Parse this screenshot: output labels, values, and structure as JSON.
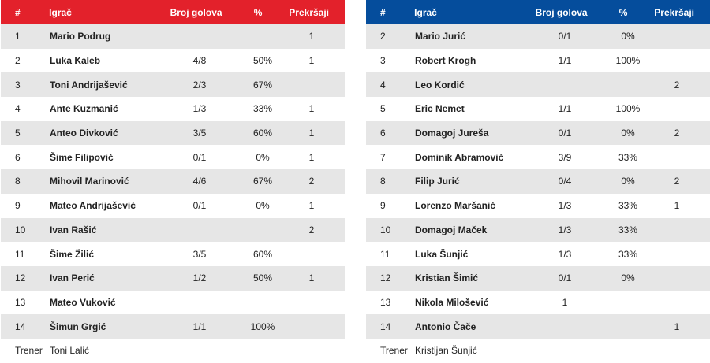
{
  "colors": {
    "home_header": "#e3212b",
    "away_header": "#054d9c",
    "row_shade": "#e6e6e6"
  },
  "headers": {
    "num": "#",
    "player": "Igrač",
    "goals": "Broj golova",
    "pct": "%",
    "fouls": "Prekršaji"
  },
  "home": {
    "players": [
      {
        "num": "1",
        "name": "Mario Podrug",
        "goals": "",
        "pct": "",
        "fouls": "1"
      },
      {
        "num": "2",
        "name": "Luka Kaleb",
        "goals": "4/8",
        "pct": "50%",
        "fouls": "1"
      },
      {
        "num": "3",
        "name": "Toni Andrijašević",
        "goals": "2/3",
        "pct": "67%",
        "fouls": ""
      },
      {
        "num": "4",
        "name": "Ante Kuzmanić",
        "goals": "1/3",
        "pct": "33%",
        "fouls": "1"
      },
      {
        "num": "5",
        "name": "Anteo Divković",
        "goals": "3/5",
        "pct": "60%",
        "fouls": "1"
      },
      {
        "num": "6",
        "name": "Šime Filipović",
        "goals": "0/1",
        "pct": "0%",
        "fouls": "1"
      },
      {
        "num": "8",
        "name": "Mihovil Marinović",
        "goals": "4/6",
        "pct": "67%",
        "fouls": "2"
      },
      {
        "num": "9",
        "name": "Mateo Andrijašević",
        "goals": "0/1",
        "pct": "0%",
        "fouls": "1"
      },
      {
        "num": "10",
        "name": "Ivan Rašić",
        "goals": "",
        "pct": "",
        "fouls": "2"
      },
      {
        "num": "11",
        "name": "Šime Žilić",
        "goals": "3/5",
        "pct": "60%",
        "fouls": ""
      },
      {
        "num": "12",
        "name": "Ivan Perić",
        "goals": "1/2",
        "pct": "50%",
        "fouls": "1"
      },
      {
        "num": "13",
        "name": "Mateo Vuković",
        "goals": "",
        "pct": "",
        "fouls": ""
      },
      {
        "num": "14",
        "name": "Šimun Grgić",
        "goals": "1/1",
        "pct": "100%",
        "fouls": ""
      }
    ],
    "coach_label": "Trener",
    "coach_name": "Toni Lalić"
  },
  "away": {
    "players": [
      {
        "num": "2",
        "name": "Mario Jurić",
        "goals": "0/1",
        "pct": "0%",
        "fouls": ""
      },
      {
        "num": "3",
        "name": "Robert Krogh",
        "goals": "1/1",
        "pct": "100%",
        "fouls": ""
      },
      {
        "num": "4",
        "name": "Leo Kordić",
        "goals": "",
        "pct": "",
        "fouls": "2"
      },
      {
        "num": "5",
        "name": "Eric Nemet",
        "goals": "1/1",
        "pct": "100%",
        "fouls": ""
      },
      {
        "num": "6",
        "name": "Domagoj Jureša",
        "goals": "0/1",
        "pct": "0%",
        "fouls": "2"
      },
      {
        "num": "7",
        "name": "Dominik Abramović",
        "goals": "3/9",
        "pct": "33%",
        "fouls": ""
      },
      {
        "num": "8",
        "name": "Filip Jurić",
        "goals": "0/4",
        "pct": "0%",
        "fouls": "2"
      },
      {
        "num": "9",
        "name": "Lorenzo Maršanić",
        "goals": "1/3",
        "pct": "33%",
        "fouls": "1"
      },
      {
        "num": "10",
        "name": "Domagoj Maček",
        "goals": "1/3",
        "pct": "33%",
        "fouls": ""
      },
      {
        "num": "11",
        "name": "Luka Šunjić",
        "goals": "1/3",
        "pct": "33%",
        "fouls": ""
      },
      {
        "num": "12",
        "name": "Kristian Šimić",
        "goals": "0/1",
        "pct": "0%",
        "fouls": ""
      },
      {
        "num": "13",
        "name": "Nikola Milošević",
        "goals": "1",
        "pct": "",
        "fouls": ""
      },
      {
        "num": "14",
        "name": "Antonio Čače",
        "goals": "",
        "pct": "",
        "fouls": "1"
      }
    ],
    "coach_label": "Trener",
    "coach_name": "Kristijan Šunjić"
  }
}
